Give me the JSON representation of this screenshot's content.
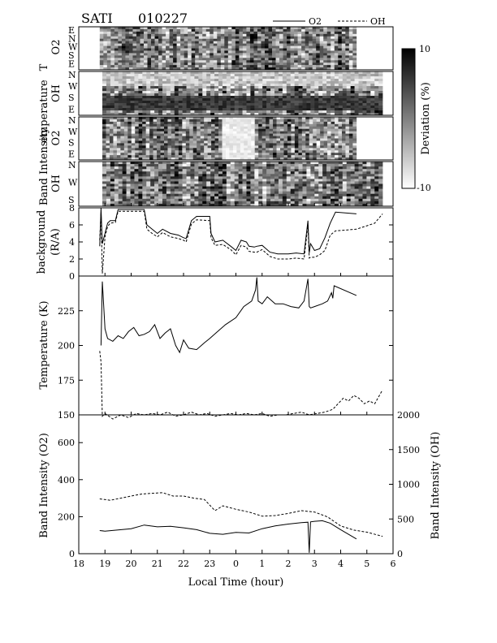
{
  "header": {
    "title_left": "SATI",
    "title_right": "010227"
  },
  "legend": {
    "o2": "O2",
    "oh": "OH"
  },
  "colorbar": {
    "label": "Deviation (%)",
    "max_label": "10",
    "min_label": "-10"
  },
  "panels": {
    "p1": {
      "label1": "Temperature",
      "label2": "O2",
      "dirs": [
        "E",
        "N",
        "W",
        "S",
        "E"
      ]
    },
    "p2": {
      "label1": "Temperature",
      "label2": "OH",
      "dirs": [
        "N",
        "W",
        "S",
        "E"
      ]
    },
    "p3": {
      "label1": "Band Intensity",
      "label2": "O2",
      "dirs": [
        "N",
        "W",
        "S",
        "E"
      ]
    },
    "p4": {
      "label1": "Band Intensity",
      "label2": "OH",
      "dirs": [
        "N",
        "W",
        "S"
      ]
    }
  },
  "chart_data": [
    {
      "type": "line",
      "ylabel": "background",
      "ylabel2": "(R/A)",
      "ylim": [
        0,
        8
      ],
      "yticks": [
        "0",
        "2",
        "4",
        "6",
        "8"
      ],
      "series": [
        {
          "name": "O2",
          "x": [
            18.8,
            18.85,
            18.9,
            19.0,
            19.1,
            19.2,
            19.4,
            19.5,
            20.0,
            20.5,
            20.6,
            20.8,
            21.0,
            21.2,
            21.5,
            21.8,
            22.0,
            22.1,
            22.3,
            22.5,
            23.0,
            23.05,
            23.2,
            23.5,
            23.8,
            24.0,
            24.2,
            24.4,
            24.5,
            24.7,
            24.8,
            25.0,
            25.3,
            25.6,
            26.0,
            26.3,
            26.6,
            26.75,
            26.8,
            26.85,
            27.0,
            27.2,
            27.4,
            27.6,
            27.8,
            28.6
          ],
          "y": [
            3.5,
            8.0,
            3.8,
            5.0,
            6.2,
            6.5,
            6.5,
            7.8,
            7.8,
            7.8,
            6.0,
            5.5,
            5.0,
            5.5,
            5.0,
            4.8,
            4.5,
            4.4,
            6.5,
            7.0,
            7.0,
            5.0,
            4.0,
            4.2,
            3.5,
            3.0,
            4.2,
            4.0,
            3.5,
            3.4,
            3.5,
            3.6,
            2.8,
            2.6,
            2.6,
            2.7,
            2.6,
            6.5,
            2.7,
            3.8,
            3.0,
            3.2,
            4.5,
            6.2,
            7.5,
            7.3
          ]
        },
        {
          "name": "OH",
          "x": [
            18.8,
            18.85,
            18.9,
            19.0,
            19.1,
            19.2,
            19.4,
            19.5,
            20.0,
            20.5,
            20.6,
            20.8,
            21.0,
            21.2,
            21.5,
            21.8,
            22.0,
            22.1,
            22.3,
            22.5,
            23.0,
            23.05,
            23.2,
            23.5,
            23.8,
            24.0,
            24.2,
            24.4,
            24.5,
            24.7,
            24.8,
            25.0,
            25.3,
            25.6,
            26.0,
            26.3,
            26.6,
            26.75,
            26.8,
            26.85,
            27.0,
            27.2,
            27.4,
            27.6,
            27.8,
            28.6,
            29.0,
            29.3,
            29.6
          ],
          "y": [
            4.2,
            7.5,
            0.3,
            4.6,
            5.8,
            6.2,
            6.3,
            7.6,
            7.6,
            7.6,
            5.5,
            5.0,
            4.6,
            5.1,
            4.6,
            4.4,
            4.2,
            4.0,
            6.1,
            6.6,
            6.5,
            4.5,
            3.6,
            3.7,
            3.1,
            2.5,
            3.6,
            3.4,
            2.9,
            2.8,
            2.8,
            3.1,
            2.3,
            2.0,
            2.0,
            2.1,
            2.0,
            6.0,
            2.1,
            2.2,
            2.2,
            2.5,
            3.0,
            4.8,
            5.3,
            5.5,
            5.9,
            6.2,
            7.3
          ]
        }
      ]
    },
    {
      "type": "line",
      "ylabel": "Temperature (K)",
      "ylim": [
        150,
        250
      ],
      "yticks": [
        "150",
        "175",
        "200",
        "225"
      ],
      "series": [
        {
          "name": "O2",
          "x": [
            18.85,
            18.9,
            19.0,
            19.1,
            19.3,
            19.5,
            19.7,
            19.9,
            20.1,
            20.3,
            20.5,
            20.7,
            20.9,
            21.1,
            21.3,
            21.5,
            21.7,
            21.85,
            22.0,
            22.2,
            22.5,
            22.8,
            23.0,
            23.3,
            23.6,
            24.0,
            24.3,
            24.6,
            24.75,
            24.8,
            24.85,
            25.0,
            25.2,
            25.5,
            25.8,
            26.1,
            26.4,
            26.6,
            26.75,
            26.8,
            26.85,
            27.0,
            27.3,
            27.5,
            27.65,
            27.7,
            27.75,
            28.6
          ],
          "y": [
            200,
            246,
            212,
            205,
            203,
            207,
            205,
            210,
            213,
            207,
            208,
            210,
            215,
            205,
            209,
            212,
            200,
            195,
            204,
            198,
            197,
            202,
            205,
            210,
            215,
            220,
            228,
            232,
            240,
            249,
            232,
            230,
            235,
            230,
            230,
            228,
            227,
            232,
            248,
            228,
            227,
            228,
            230,
            232,
            238,
            234,
            243,
            236
          ]
        },
        {
          "name": "OH",
          "x": [
            18.8,
            18.85,
            18.9,
            19.0,
            19.3,
            19.6,
            19.9,
            20.2,
            20.5,
            20.8,
            21.1,
            21.4,
            21.7,
            22.0,
            22.3,
            22.6,
            22.9,
            23.2,
            23.5,
            23.8,
            24.1,
            24.4,
            24.7,
            25.0,
            25.3,
            25.6,
            25.9,
            26.2,
            26.5,
            26.8,
            27.1,
            27.4,
            27.7,
            27.9,
            28.1,
            28.3,
            28.5,
            28.7,
            28.9,
            29.1,
            29.3,
            29.6
          ],
          "y": [
            196,
            188,
            149,
            151,
            147,
            150,
            148,
            151,
            150,
            151,
            150,
            152,
            149,
            150,
            152,
            150,
            151,
            149,
            150,
            151,
            150,
            151,
            150,
            151,
            149,
            150,
            150,
            151,
            152,
            150,
            151,
            152,
            154,
            158,
            162,
            160,
            164,
            162,
            158,
            160,
            158,
            168
          ]
        }
      ]
    },
    {
      "type": "line",
      "ylabel": "Band Intensity (O2)",
      "ylabel_right": "Band Intensity (OH)",
      "xlabel": "Local Time (hour)",
      "ylim": [
        0,
        750
      ],
      "ylim_right": [
        0,
        2000
      ],
      "yticks": [
        "0",
        "200",
        "400",
        "600"
      ],
      "yticks_right": [
        "0",
        "500",
        "1000",
        "1500",
        "2000"
      ],
      "xticks": [
        "18",
        "19",
        "20",
        "21",
        "22",
        "23",
        "0",
        "1",
        "2",
        "3",
        "4",
        "5",
        "6"
      ],
      "series": [
        {
          "name": "O2",
          "x": [
            18.8,
            19.0,
            19.5,
            20.0,
            20.5,
            21.0,
            21.5,
            22.0,
            22.5,
            23.0,
            23.5,
            24.0,
            24.5,
            25.0,
            25.5,
            26.0,
            26.5,
            26.75,
            26.8,
            26.85,
            27.0,
            27.3,
            27.6,
            28.0,
            28.6
          ],
          "y": [
            125,
            122,
            128,
            135,
            155,
            145,
            148,
            140,
            130,
            110,
            105,
            115,
            112,
            135,
            150,
            160,
            168,
            170,
            5,
            172,
            175,
            178,
            165,
            130,
            80
          ]
        },
        {
          "name": "OH",
          "x": [
            18.8,
            19.2,
            19.6,
            20.0,
            20.4,
            20.8,
            21.2,
            21.6,
            22.0,
            22.4,
            22.8,
            23.2,
            23.5,
            24.0,
            24.5,
            25.0,
            25.5,
            26.0,
            26.5,
            27.0,
            27.5,
            28.0,
            28.5,
            29.0,
            29.6
          ],
          "y": [
            790,
            770,
            800,
            830,
            860,
            870,
            880,
            830,
            830,
            800,
            780,
            620,
            690,
            640,
            600,
            540,
            550,
            580,
            620,
            600,
            530,
            400,
            340,
            310,
            250
          ]
        }
      ]
    }
  ]
}
